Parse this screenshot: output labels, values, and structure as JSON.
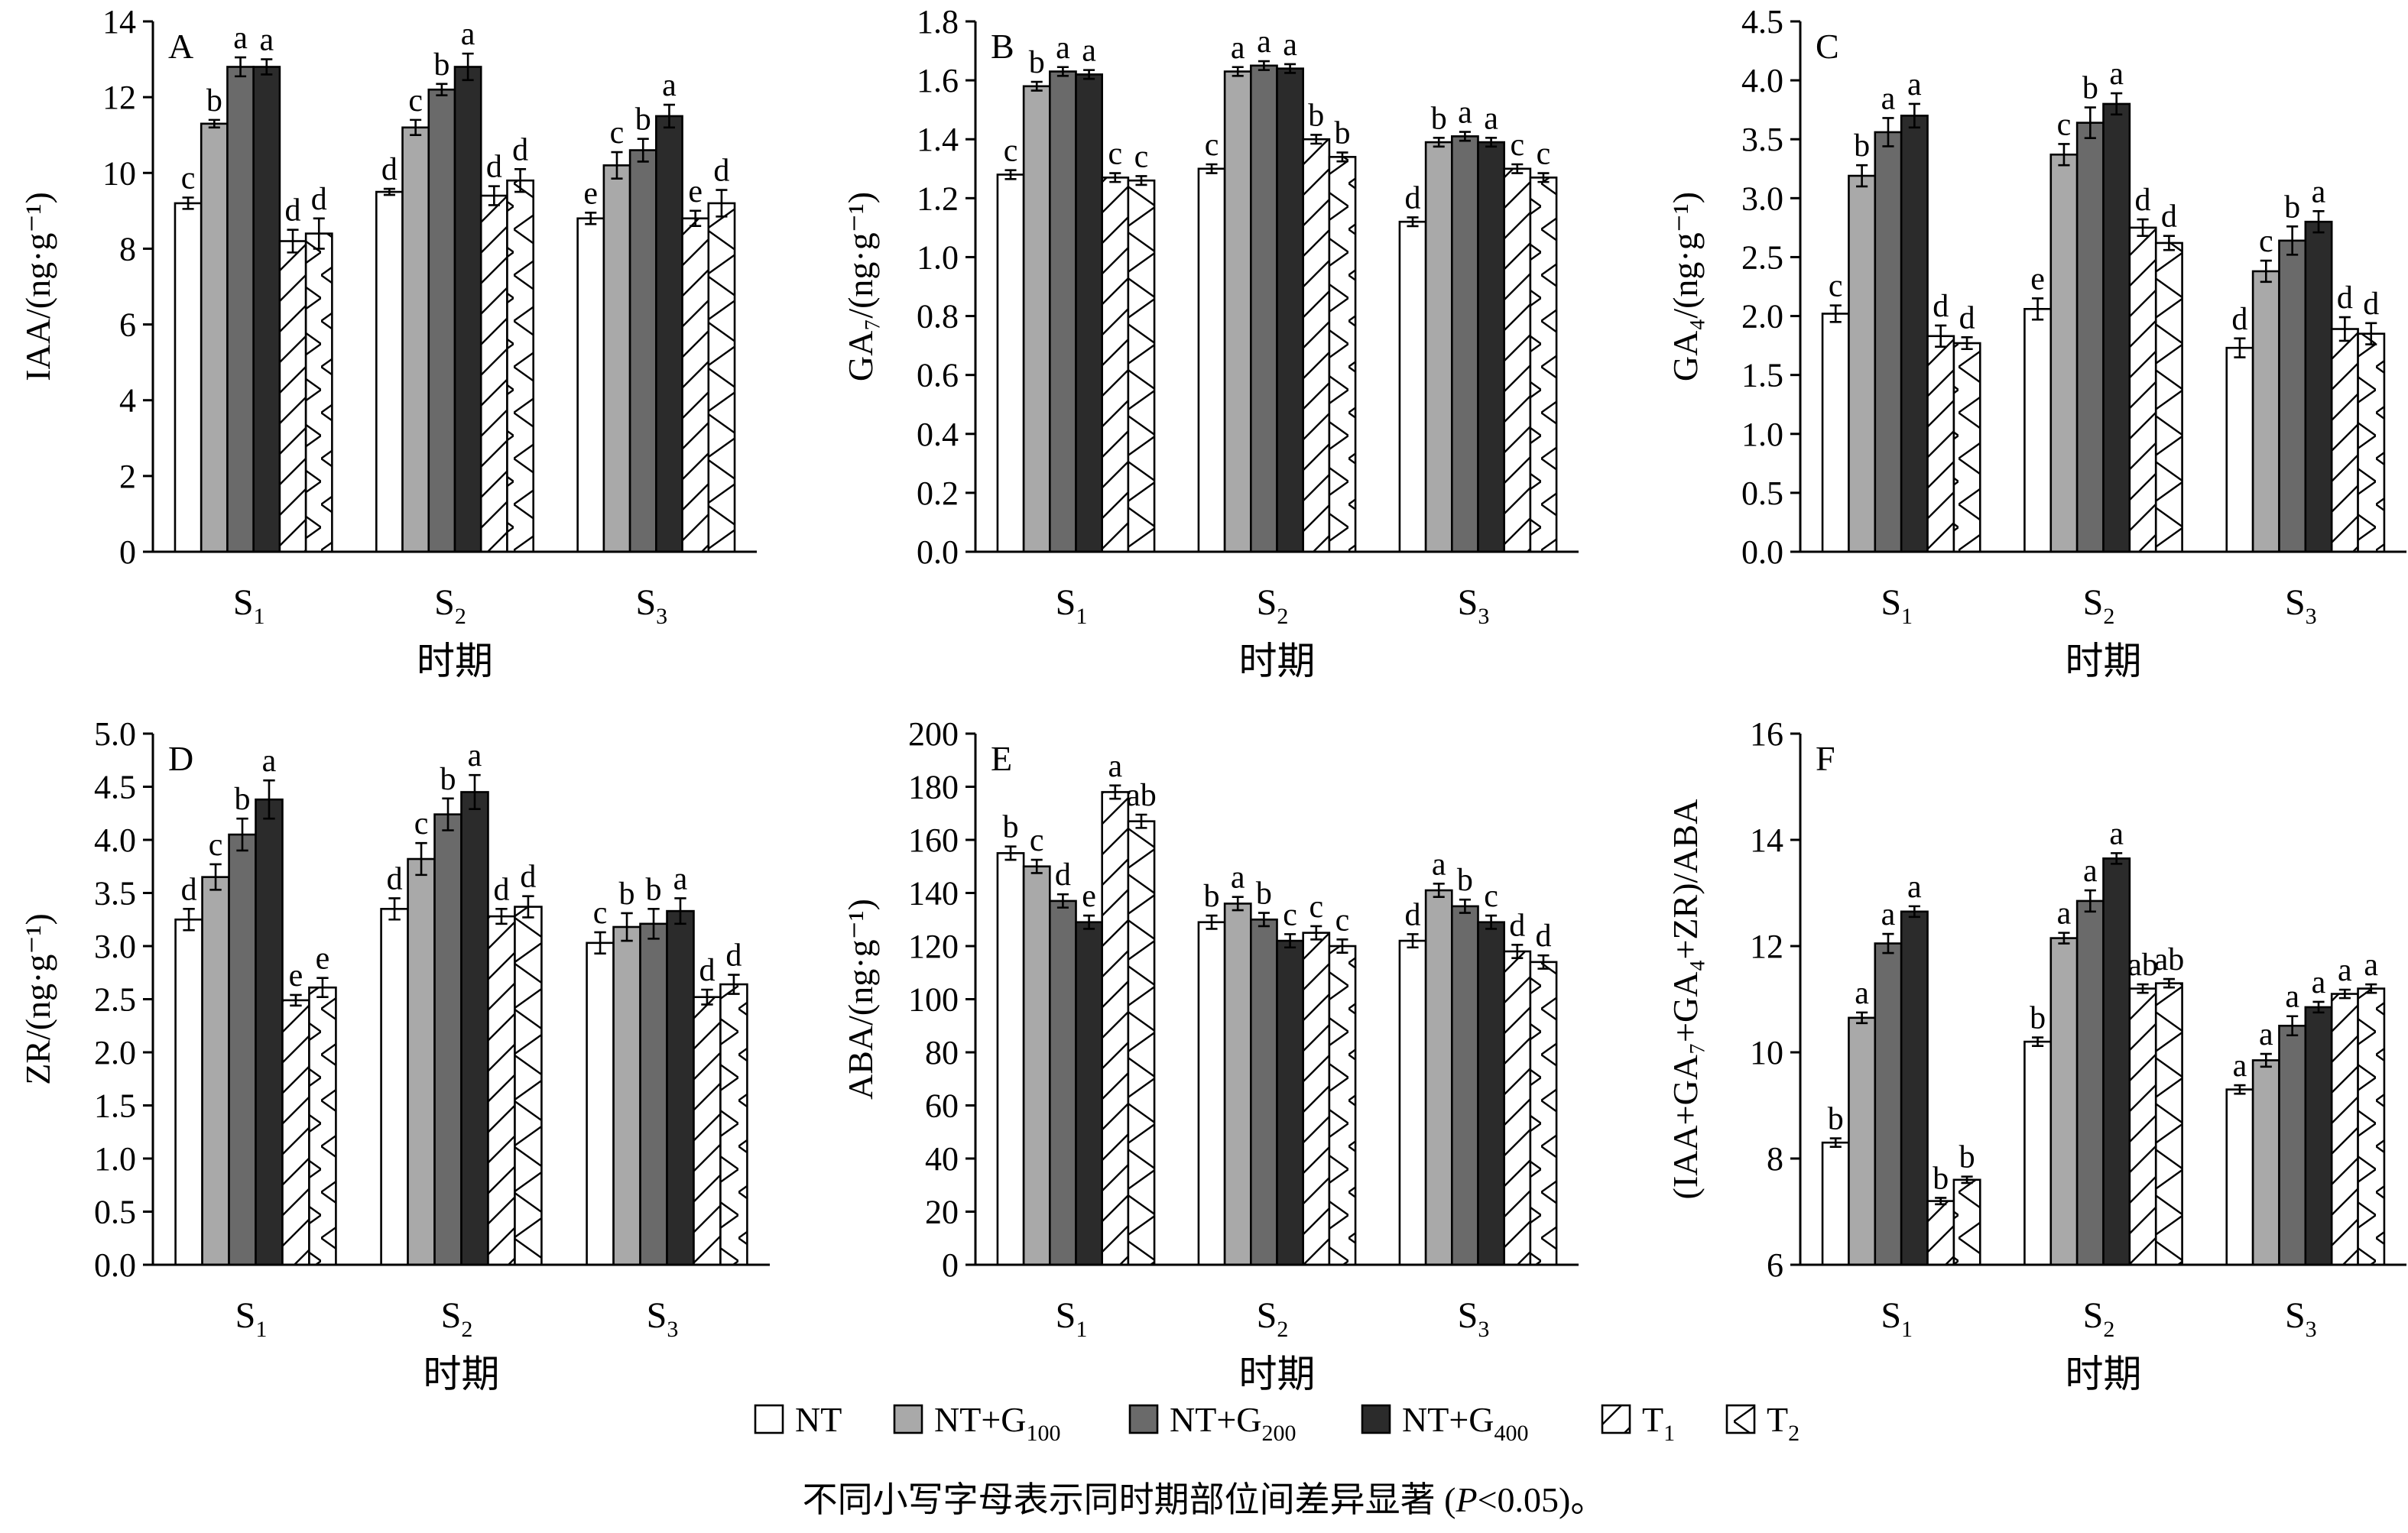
{
  "chart_data": [
    {
      "panel": "A",
      "type": "bar",
      "ylabel": "IAA/(ng·g⁻¹)",
      "xlabel": "时期",
      "ylim": [
        0,
        14
      ],
      "yticks": [
        0,
        2,
        4,
        6,
        8,
        10,
        12,
        14
      ],
      "categories": [
        "S1",
        "S2",
        "S3"
      ],
      "series": [
        {
          "name": "NT",
          "values": [
            9.2,
            9.5,
            8.8
          ],
          "errors": [
            0.15,
            0.08,
            0.15
          ],
          "letters": [
            "c",
            "d",
            "e"
          ]
        },
        {
          "name": "NT+G100",
          "values": [
            11.3,
            11.2,
            10.2
          ],
          "errors": [
            0.1,
            0.2,
            0.35
          ],
          "letters": [
            "b",
            "c",
            "c"
          ]
        },
        {
          "name": "NT+G200",
          "values": [
            12.8,
            12.2,
            10.6
          ],
          "errors": [
            0.25,
            0.15,
            0.3
          ],
          "letters": [
            "a",
            "b",
            "b"
          ]
        },
        {
          "name": "NT+G400",
          "values": [
            12.8,
            12.8,
            11.5
          ],
          "errors": [
            0.2,
            0.35,
            0.3
          ],
          "letters": [
            "a",
            "a",
            "a"
          ]
        },
        {
          "name": "T1",
          "values": [
            8.2,
            9.4,
            8.8
          ],
          "errors": [
            0.3,
            0.25,
            0.2
          ],
          "letters": [
            "d",
            "d",
            "e"
          ]
        },
        {
          "name": "T2",
          "values": [
            8.4,
            9.8,
            9.2
          ],
          "errors": [
            0.4,
            0.3,
            0.35
          ],
          "letters": [
            "d",
            "d",
            "d"
          ]
        }
      ]
    },
    {
      "panel": "B",
      "type": "bar",
      "ylabel": "GA₇/(ng·g⁻¹)",
      "xlabel": "时期",
      "ylim": [
        0,
        1.8
      ],
      "yticks": [
        0,
        0.2,
        0.4,
        0.6,
        0.8,
        1.0,
        1.2,
        1.4,
        1.6,
        1.8
      ],
      "categories": [
        "S1",
        "S2",
        "S3"
      ],
      "series": [
        {
          "name": "NT",
          "values": [
            1.28,
            1.3,
            1.12
          ],
          "errors": [
            0.015,
            0.015,
            0.015
          ],
          "letters": [
            "c",
            "c",
            "d"
          ]
        },
        {
          "name": "NT+G100",
          "values": [
            1.58,
            1.63,
            1.39
          ],
          "errors": [
            0.015,
            0.015,
            0.015
          ],
          "letters": [
            "b",
            "a",
            "b"
          ]
        },
        {
          "name": "NT+G200",
          "values": [
            1.63,
            1.65,
            1.41
          ],
          "errors": [
            0.015,
            0.015,
            0.015
          ],
          "letters": [
            "a",
            "a",
            "a"
          ]
        },
        {
          "name": "NT+G400",
          "values": [
            1.62,
            1.64,
            1.39
          ],
          "errors": [
            0.015,
            0.015,
            0.015
          ],
          "letters": [
            "a",
            "a",
            "a"
          ]
        },
        {
          "name": "T1",
          "values": [
            1.27,
            1.4,
            1.3
          ],
          "errors": [
            0.015,
            0.015,
            0.015
          ],
          "letters": [
            "c",
            "b",
            "c"
          ]
        },
        {
          "name": "T2",
          "values": [
            1.26,
            1.34,
            1.27
          ],
          "errors": [
            0.015,
            0.015,
            0.015
          ],
          "letters": [
            "c",
            "b",
            "c"
          ]
        }
      ]
    },
    {
      "panel": "C",
      "type": "bar",
      "ylabel": "GA₄/(ng·g⁻¹)",
      "xlabel": "时期",
      "ylim": [
        0,
        4.5
      ],
      "yticks": [
        0,
        0.5,
        1.0,
        1.5,
        2.0,
        2.5,
        3.0,
        3.5,
        4.0,
        4.5
      ],
      "categories": [
        "S1",
        "S2",
        "S3"
      ],
      "series": [
        {
          "name": "NT",
          "values": [
            2.02,
            2.06,
            1.73
          ],
          "errors": [
            0.07,
            0.09,
            0.08
          ],
          "letters": [
            "c",
            "e",
            "d"
          ]
        },
        {
          "name": "NT+G100",
          "values": [
            3.19,
            3.37,
            2.38
          ],
          "errors": [
            0.09,
            0.09,
            0.09
          ],
          "letters": [
            "b",
            "c",
            "c"
          ]
        },
        {
          "name": "NT+G200",
          "values": [
            3.56,
            3.64,
            2.64
          ],
          "errors": [
            0.12,
            0.13,
            0.12
          ],
          "letters": [
            "a",
            "b",
            "b"
          ]
        },
        {
          "name": "NT+G400",
          "values": [
            3.7,
            3.8,
            2.8
          ],
          "errors": [
            0.1,
            0.09,
            0.09
          ],
          "letters": [
            "a",
            "a",
            "a"
          ]
        },
        {
          "name": "T1",
          "values": [
            1.83,
            2.75,
            1.89
          ],
          "errors": [
            0.09,
            0.07,
            0.1
          ],
          "letters": [
            "d",
            "d",
            "d"
          ]
        },
        {
          "name": "T2",
          "values": [
            1.77,
            2.62,
            1.85
          ],
          "errors": [
            0.05,
            0.06,
            0.09
          ],
          "letters": [
            "d",
            "d",
            "d"
          ]
        }
      ]
    },
    {
      "panel": "D",
      "type": "bar",
      "ylabel": "ZR/(ng·g⁻¹)",
      "xlabel": "时期",
      "ylim": [
        0,
        5.0
      ],
      "yticks": [
        0,
        0.5,
        1.0,
        1.5,
        2.0,
        2.5,
        3.0,
        3.5,
        4.0,
        4.5,
        5.0
      ],
      "categories": [
        "S1",
        "S2",
        "S3"
      ],
      "series": [
        {
          "name": "NT",
          "values": [
            3.25,
            3.35,
            3.03
          ],
          "errors": [
            0.1,
            0.1,
            0.1
          ],
          "letters": [
            "d",
            "d",
            "c"
          ]
        },
        {
          "name": "NT+G100",
          "values": [
            3.65,
            3.82,
            3.18
          ],
          "errors": [
            0.12,
            0.15,
            0.13
          ],
          "letters": [
            "c",
            "c",
            "b"
          ]
        },
        {
          "name": "NT+G200",
          "values": [
            4.05,
            4.24,
            3.21
          ],
          "errors": [
            0.15,
            0.15,
            0.14
          ],
          "letters": [
            "b",
            "b",
            "b"
          ]
        },
        {
          "name": "NT+G400",
          "values": [
            4.38,
            4.45,
            3.33
          ],
          "errors": [
            0.18,
            0.16,
            0.12
          ],
          "letters": [
            "a",
            "a",
            "a"
          ]
        },
        {
          "name": "T1",
          "values": [
            2.49,
            3.28,
            2.52
          ],
          "errors": [
            0.05,
            0.07,
            0.07
          ],
          "letters": [
            "e",
            "d",
            "d"
          ]
        },
        {
          "name": "T2",
          "values": [
            2.61,
            3.37,
            2.64
          ],
          "errors": [
            0.09,
            0.1,
            0.09
          ],
          "letters": [
            "e",
            "d",
            "d"
          ]
        }
      ]
    },
    {
      "panel": "E",
      "type": "bar",
      "ylabel": "ABA/(ng·g⁻¹)",
      "xlabel": "时期",
      "ylim": [
        0,
        200
      ],
      "yticks": [
        0,
        20,
        40,
        60,
        80,
        100,
        120,
        140,
        160,
        180,
        200
      ],
      "categories": [
        "S1",
        "S2",
        "S3"
      ],
      "series": [
        {
          "name": "NT",
          "values": [
            155,
            129,
            122
          ],
          "errors": [
            2.5,
            2.5,
            2.5
          ],
          "letters": [
            "b",
            "b",
            "d"
          ]
        },
        {
          "name": "NT+G100",
          "values": [
            150,
            136,
            141
          ],
          "errors": [
            2.5,
            2.5,
            2.5
          ],
          "letters": [
            "c",
            "a",
            "a"
          ]
        },
        {
          "name": "NT+G200",
          "values": [
            137,
            130,
            135
          ],
          "errors": [
            2.5,
            2.5,
            2.5
          ],
          "letters": [
            "d",
            "b",
            "b"
          ]
        },
        {
          "name": "NT+G400",
          "values": [
            129,
            122,
            129
          ],
          "errors": [
            2.5,
            2.5,
            2.5
          ],
          "letters": [
            "e",
            "c",
            "c"
          ]
        },
        {
          "name": "T1",
          "values": [
            178,
            125,
            118
          ],
          "errors": [
            2.5,
            2.5,
            2.5
          ],
          "letters": [
            "a",
            "c",
            "d"
          ]
        },
        {
          "name": "T2",
          "values": [
            167,
            120,
            114
          ],
          "errors": [
            2.5,
            2.5,
            2.5
          ],
          "letters": [
            "ab",
            "c",
            "d"
          ]
        }
      ]
    },
    {
      "panel": "F",
      "type": "bar",
      "ylabel": "(IAA+GA₇+GA₄+ZR)/ABA",
      "xlabel": "时期",
      "ylim": [
        6,
        16
      ],
      "yticks": [
        6,
        8,
        10,
        12,
        14,
        16
      ],
      "categories": [
        "S1",
        "S2",
        "S3"
      ],
      "series": [
        {
          "name": "NT",
          "values": [
            8.3,
            10.2,
            9.3
          ],
          "errors": [
            0.08,
            0.08,
            0.08
          ],
          "letters": [
            "b",
            "b",
            "a"
          ]
        },
        {
          "name": "NT+G100",
          "values": [
            10.65,
            12.15,
            9.85
          ],
          "errors": [
            0.1,
            0.1,
            0.12
          ],
          "letters": [
            "a",
            "a",
            "a"
          ]
        },
        {
          "name": "NT+G200",
          "values": [
            12.05,
            12.85,
            10.5
          ],
          "errors": [
            0.18,
            0.2,
            0.18
          ],
          "letters": [
            "a",
            "a",
            "a"
          ]
        },
        {
          "name": "NT+G400",
          "values": [
            12.65,
            13.65,
            10.85
          ],
          "errors": [
            0.1,
            0.1,
            0.1
          ],
          "letters": [
            "a",
            "a",
            "a"
          ]
        },
        {
          "name": "T1",
          "values": [
            7.2,
            11.2,
            11.1
          ],
          "errors": [
            0.06,
            0.08,
            0.08
          ],
          "letters": [
            "b",
            "ab",
            "a"
          ]
        },
        {
          "name": "T2",
          "values": [
            7.6,
            11.3,
            11.2
          ],
          "errors": [
            0.06,
            0.08,
            0.08
          ],
          "letters": [
            "b",
            "ab",
            "a"
          ]
        }
      ]
    }
  ],
  "series_styles": [
    {
      "fill": "#ffffff",
      "hatch": "none"
    },
    {
      "fill": "#a9a9a9",
      "hatch": "none"
    },
    {
      "fill": "#6a6a6a",
      "hatch": "none"
    },
    {
      "fill": "#2b2b2b",
      "hatch": "none"
    },
    {
      "fill": "#ffffff",
      "hatch": "forward"
    },
    {
      "fill": "#ffffff",
      "hatch": "chevron"
    }
  ],
  "legend": [
    {
      "base": "NT",
      "sub": ""
    },
    {
      "base": "NT+G",
      "sub": "100"
    },
    {
      "base": "NT+G",
      "sub": "200"
    },
    {
      "base": "NT+G",
      "sub": "400"
    },
    {
      "base": "T",
      "sub": "1"
    },
    {
      "base": "T",
      "sub": "2"
    }
  ],
  "footnote": {
    "pre": "不同小写字母表示同时期部位间差异显著 (",
    "italic": "P",
    "post": "<0.05)。"
  }
}
